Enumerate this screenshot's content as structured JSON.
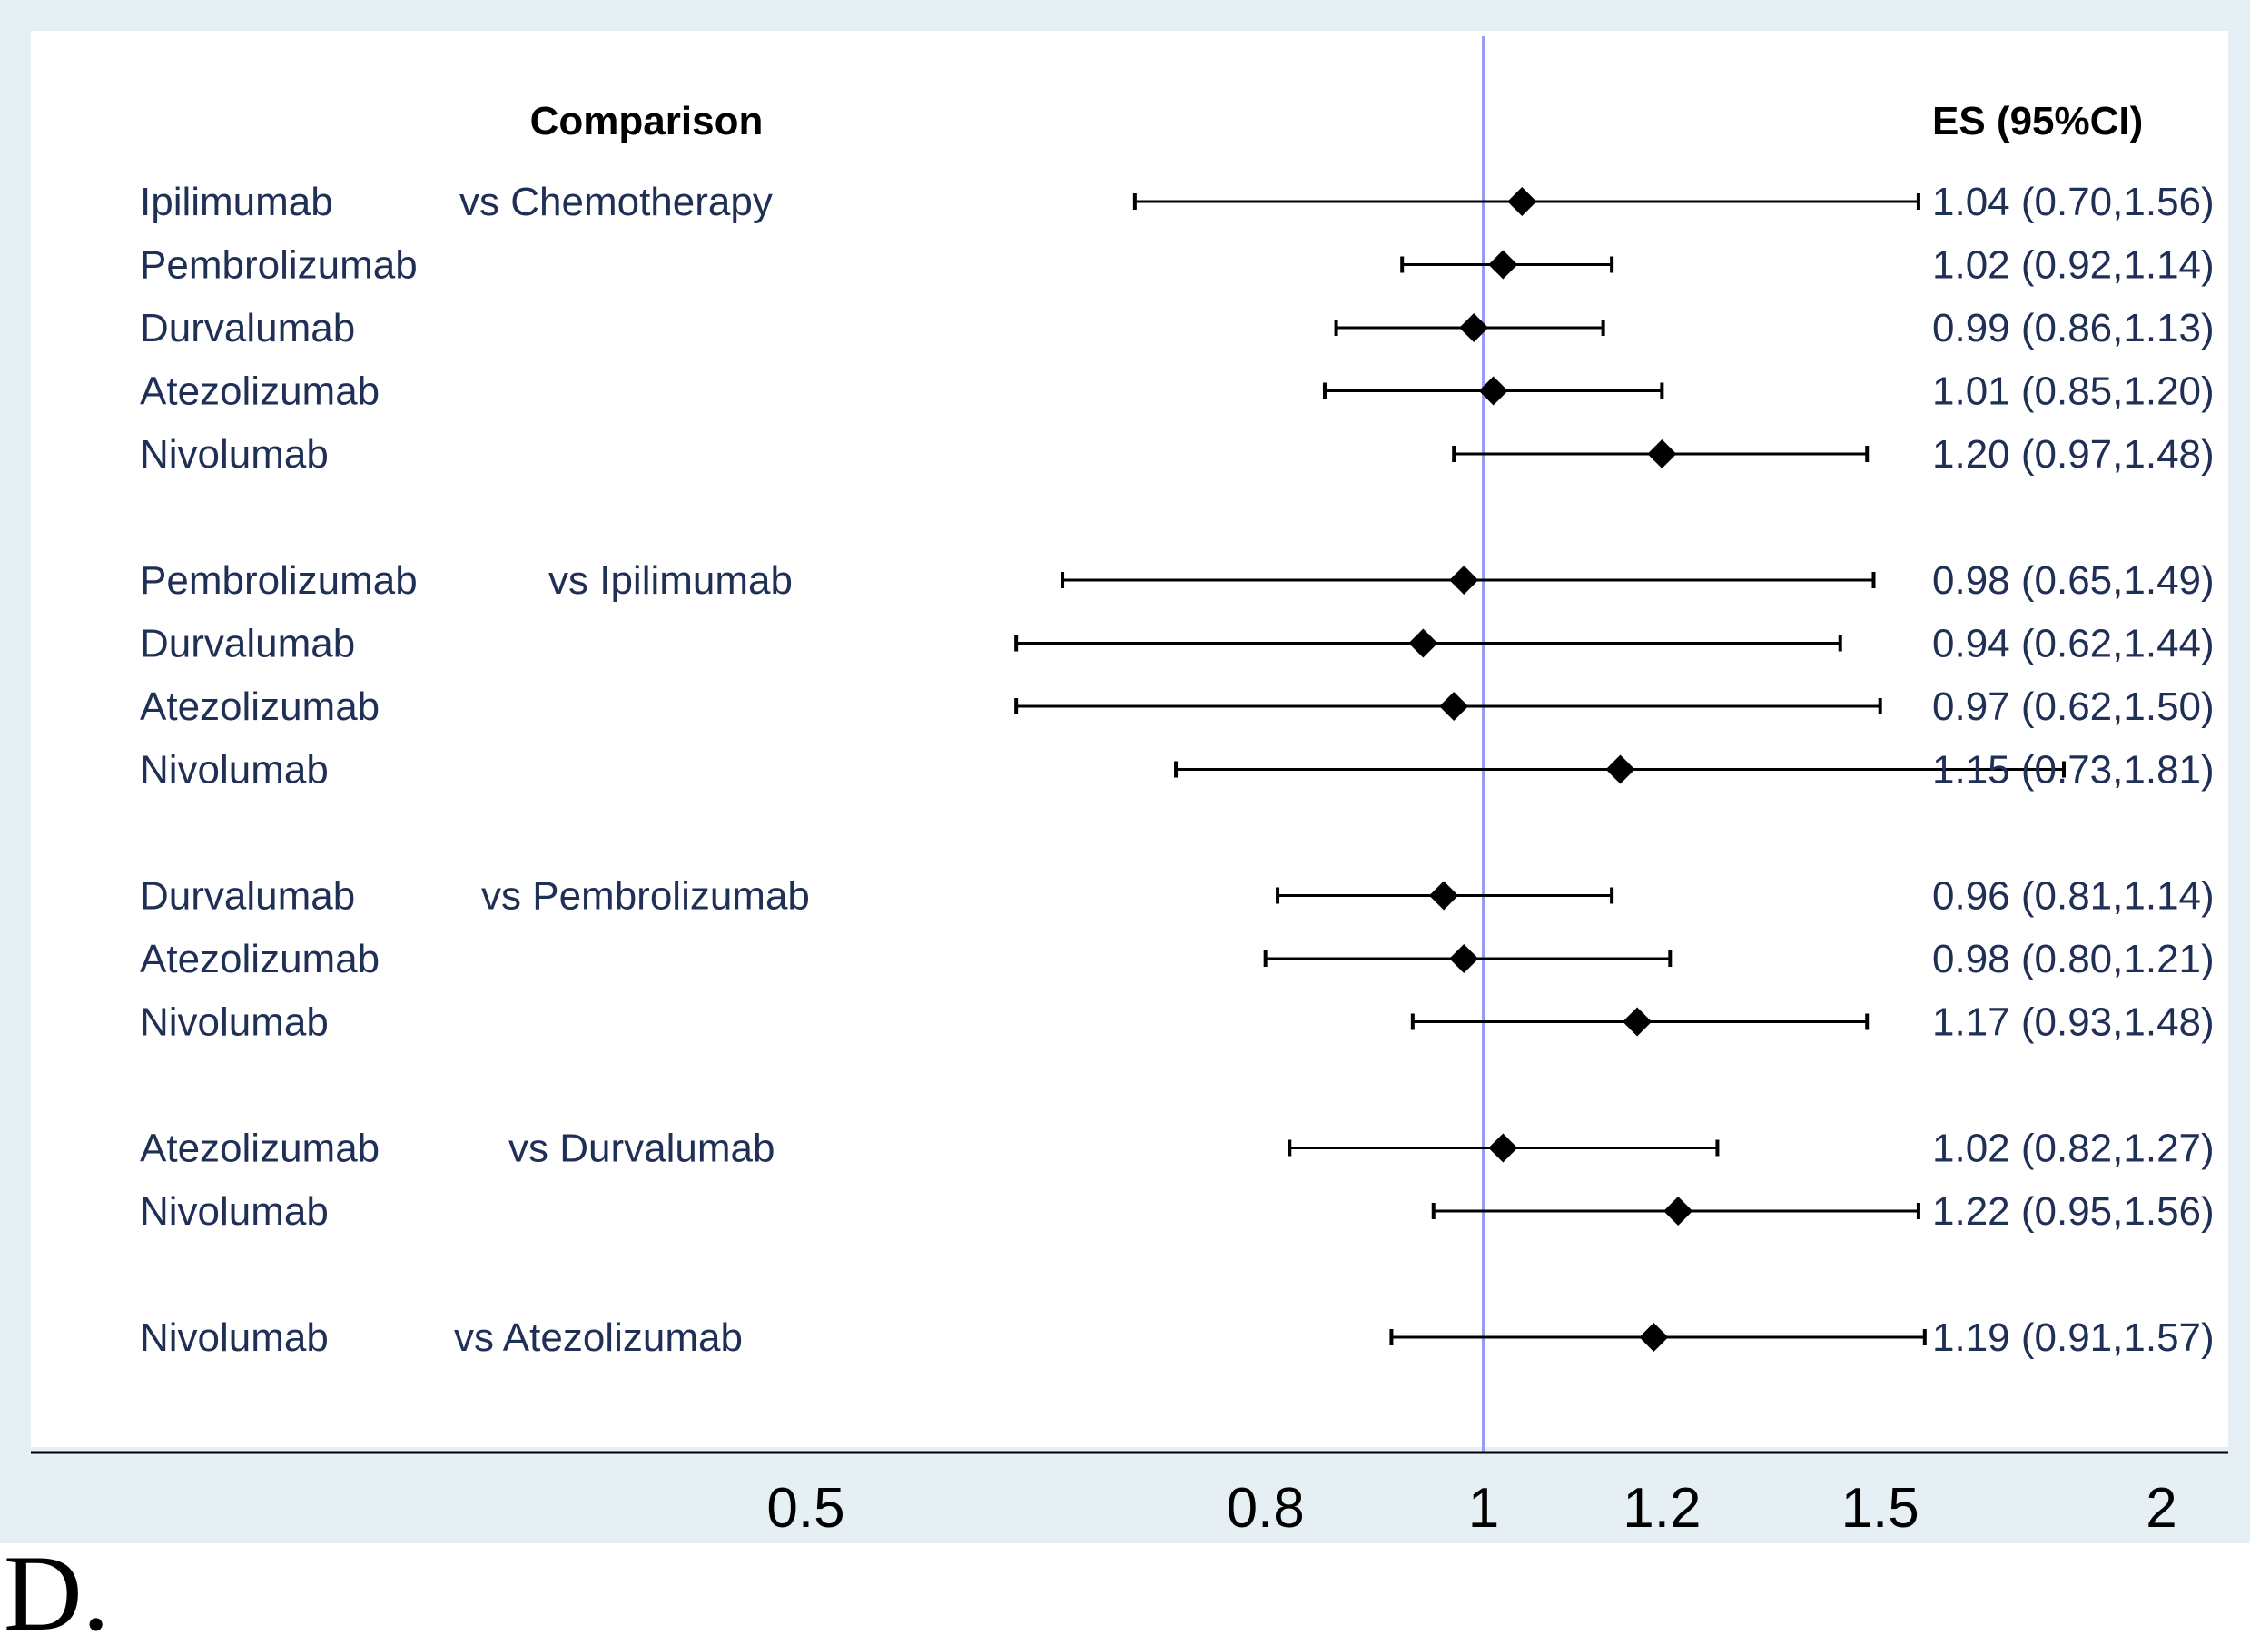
{
  "chart_data": {
    "type": "forest",
    "x_scale": "log",
    "reference_value": 1,
    "headers": {
      "comparison": "Comparison",
      "es": "ES (95%CI)"
    },
    "x_ticks": [
      {
        "value": 0.5,
        "label": "0.5"
      },
      {
        "value": 0.8,
        "label": "0.8"
      },
      {
        "value": 1,
        "label": "1"
      },
      {
        "value": 1.2,
        "label": "1.2"
      },
      {
        "value": 1.5,
        "label": "1.5"
      },
      {
        "value": 2,
        "label": "2"
      }
    ],
    "groups": [
      {
        "comparator": "vs Chemotherapy",
        "rows": [
          {
            "drug": "Ipilimumab",
            "es": 1.04,
            "lo": 0.7,
            "hi": 1.56,
            "label": "1.04 (0.70,1.56)"
          },
          {
            "drug": "Pembrolizumab",
            "es": 1.02,
            "lo": 0.92,
            "hi": 1.14,
            "label": "1.02 (0.92,1.14)"
          },
          {
            "drug": "Durvalumab",
            "es": 0.99,
            "lo": 0.86,
            "hi": 1.13,
            "label": "0.99 (0.86,1.13)"
          },
          {
            "drug": "Atezolizumab",
            "es": 1.01,
            "lo": 0.85,
            "hi": 1.2,
            "label": "1.01 (0.85,1.20)"
          },
          {
            "drug": "Nivolumab",
            "es": 1.2,
            "lo": 0.97,
            "hi": 1.48,
            "label": "1.20 (0.97,1.48)"
          }
        ]
      },
      {
        "comparator": "vs Ipilimumab",
        "rows": [
          {
            "drug": "Pembrolizumab",
            "es": 0.98,
            "lo": 0.65,
            "hi": 1.49,
            "label": "0.98 (0.65,1.49)"
          },
          {
            "drug": "Durvalumab",
            "es": 0.94,
            "lo": 0.62,
            "hi": 1.44,
            "label": "0.94 (0.62,1.44)"
          },
          {
            "drug": "Atezolizumab",
            "es": 0.97,
            "lo": 0.62,
            "hi": 1.5,
            "label": "0.97 (0.62,1.50)"
          },
          {
            "drug": "Nivolumab",
            "es": 1.15,
            "lo": 0.73,
            "hi": 1.81,
            "label": "1.15 (0.73,1.81)"
          }
        ]
      },
      {
        "comparator": "vs Pembrolizumab",
        "rows": [
          {
            "drug": "Durvalumab",
            "es": 0.96,
            "lo": 0.81,
            "hi": 1.14,
            "label": "0.96 (0.81,1.14)"
          },
          {
            "drug": "Atezolizumab",
            "es": 0.98,
            "lo": 0.8,
            "hi": 1.21,
            "label": "0.98 (0.80,1.21)"
          },
          {
            "drug": "Nivolumab",
            "es": 1.17,
            "lo": 0.93,
            "hi": 1.48,
            "label": "1.17 (0.93,1.48)"
          }
        ]
      },
      {
        "comparator": "vs Durvalumab",
        "rows": [
          {
            "drug": "Atezolizumab",
            "es": 1.02,
            "lo": 0.82,
            "hi": 1.27,
            "label": "1.02 (0.82,1.27)"
          },
          {
            "drug": "Nivolumab",
            "es": 1.22,
            "lo": 0.95,
            "hi": 1.56,
            "label": "1.22 (0.95,1.56)"
          }
        ]
      },
      {
        "comparator": "vs Atezolizumab",
        "rows": [
          {
            "drug": "Nivolumab",
            "es": 1.19,
            "lo": 0.91,
            "hi": 1.57,
            "label": "1.19 (0.91,1.57)"
          }
        ]
      }
    ]
  },
  "panel_label": "D.",
  "colors": {
    "outer_background": "#e6eff3",
    "plot_background": "#ffffff",
    "reference_line": "#9a9cf4",
    "marker": "#000000",
    "ci_line": "#000000",
    "label_text": "#1f2f56"
  }
}
